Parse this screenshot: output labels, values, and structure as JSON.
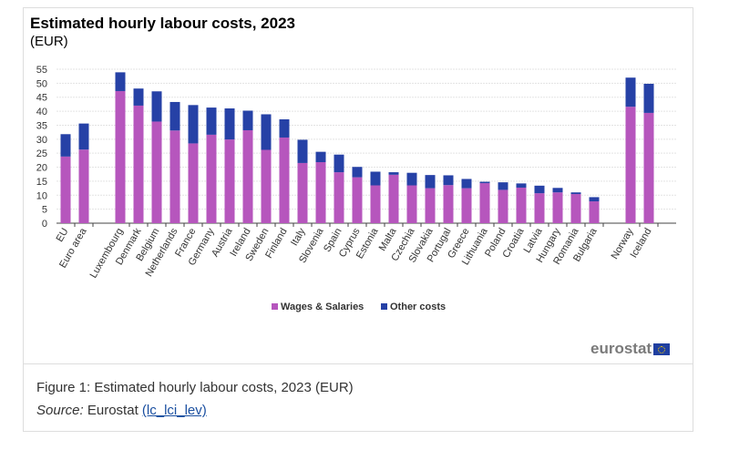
{
  "chart_data": {
    "type": "bar",
    "stacked": true,
    "title": "Estimated hourly labour costs, 2023",
    "subtitle": "(EUR)",
    "ylim": [
      0,
      55
    ],
    "yticks": [
      0,
      5,
      10,
      15,
      20,
      25,
      30,
      35,
      40,
      45,
      50,
      55
    ],
    "grid": true,
    "legend_placement": "bottom",
    "categories": [
      "EU",
      "Euro area",
      "Luxembourg",
      "Denmark",
      "Belgium",
      "Netherlands",
      "France",
      "Germany",
      "Austria",
      "Ireland",
      "Sweden",
      "Finland",
      "Italy",
      "Slovenia",
      "Spain",
      "Cyprus",
      "Estonia",
      "Malta",
      "Czechia",
      "Slovakia",
      "Portugal",
      "Greece",
      "Lithuania",
      "Poland",
      "Croatia",
      "Latvia",
      "Hungary",
      "Romania",
      "Bulgaria",
      "Norway",
      "Iceland"
    ],
    "series": [
      {
        "name": "Wages & Salaries",
        "color": "#b656bd",
        "values": [
          23.8,
          26.3,
          47.2,
          42.0,
          36.3,
          33.1,
          28.5,
          31.6,
          29.9,
          33.2,
          26.2,
          30.6,
          21.5,
          21.8,
          18.2,
          16.4,
          13.5,
          17.3,
          13.5,
          12.5,
          13.6,
          12.5,
          14.3,
          11.9,
          12.7,
          10.7,
          11.0,
          10.4,
          7.8,
          41.6,
          39.4
        ]
      },
      {
        "name": "Other costs",
        "color": "#2641a6",
        "values": [
          8.0,
          9.3,
          6.7,
          6.1,
          10.8,
          10.2,
          13.7,
          9.7,
          11.1,
          7.0,
          12.7,
          6.5,
          8.3,
          3.7,
          6.3,
          3.7,
          4.9,
          0.9,
          4.5,
          4.7,
          3.5,
          3.3,
          0.5,
          2.7,
          1.5,
          2.7,
          1.6,
          0.6,
          1.5,
          10.4,
          10.4
        ]
      }
    ]
  },
  "branding": {
    "logo": "eurostat"
  },
  "caption": {
    "text": "Figure 1: Estimated hourly labour costs, 2023 (EUR)",
    "source_label": "Source:",
    "source_text": " Eurostat ",
    "source_link": "(lc_lci_lev)"
  }
}
